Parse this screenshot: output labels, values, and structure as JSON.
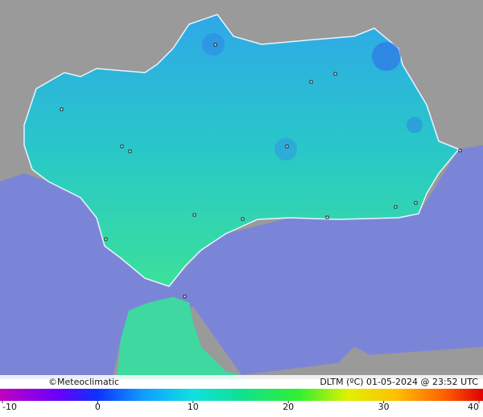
{
  "map": {
    "credit": "©Meteoclimatic",
    "caption": "DLTM (ºC)  01-05-2024 @ 23:52 UTC",
    "colorbar": {
      "ticks": [
        -10,
        0,
        10,
        20,
        30,
        40
      ]
    }
  }
}
